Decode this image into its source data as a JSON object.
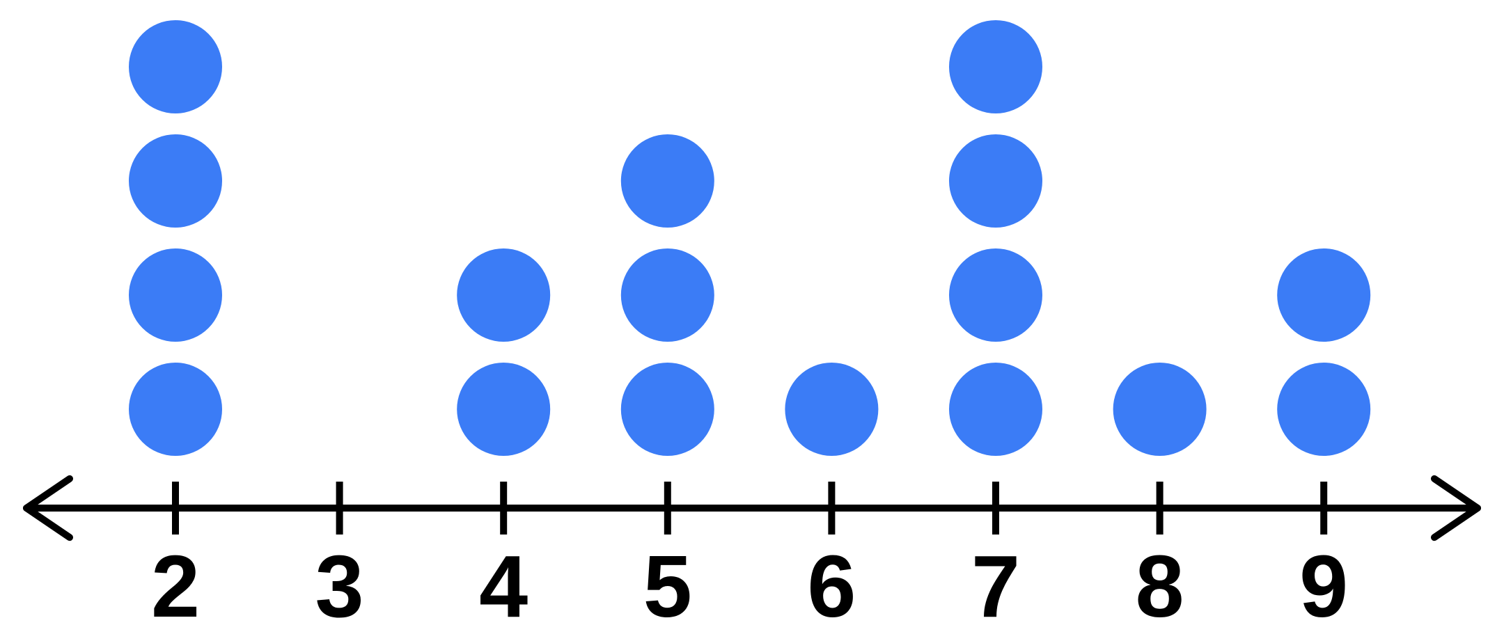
{
  "chart_data": {
    "type": "dot_plot",
    "title": "",
    "xlabel": "",
    "ylabel": "",
    "categories": [
      2,
      3,
      4,
      5,
      6,
      7,
      8,
      9
    ],
    "counts": [
      4,
      0,
      2,
      3,
      1,
      4,
      1,
      2
    ],
    "axis": {
      "tick_labels": [
        "2",
        "3",
        "4",
        "5",
        "6",
        "7",
        "8",
        "9"
      ],
      "arrow_left": true,
      "arrow_right": true,
      "grid": false,
      "legend": "none"
    },
    "colors": {
      "dot": "#3b7cf6",
      "axis": "#000000",
      "label": "#000000",
      "background": "#ffffff"
    }
  }
}
